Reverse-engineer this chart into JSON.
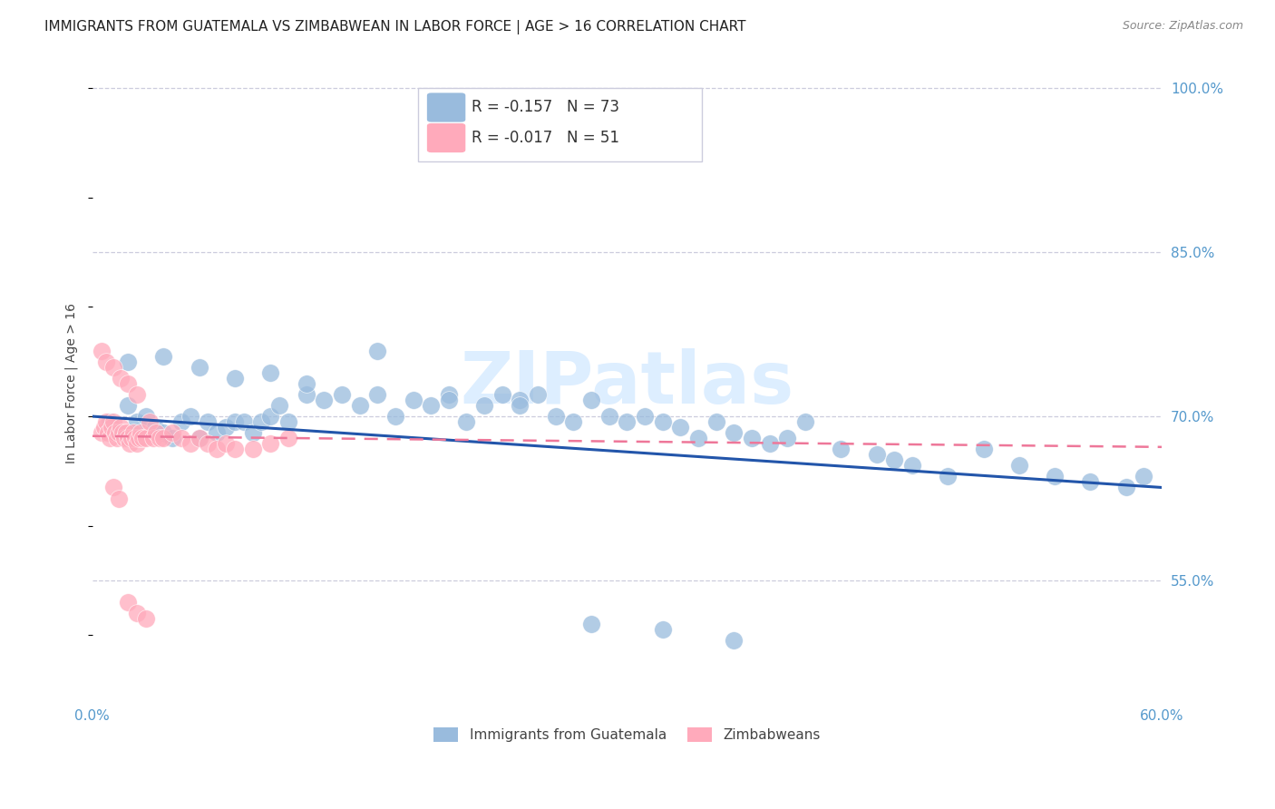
{
  "title": "IMMIGRANTS FROM GUATEMALA VS ZIMBABWEAN IN LABOR FORCE | AGE > 16 CORRELATION CHART",
  "source": "Source: ZipAtlas.com",
  "ylabel": "In Labor Force | Age > 16",
  "xlim": [
    0.0,
    0.6
  ],
  "ylim": [
    0.44,
    1.02
  ],
  "xticks": [
    0.0,
    0.1,
    0.2,
    0.3,
    0.4,
    0.5,
    0.6
  ],
  "xtick_labels": [
    "0.0%",
    "",
    "",
    "",
    "",
    "",
    "60.0%"
  ],
  "ytick_positions": [
    0.55,
    0.7,
    0.85,
    1.0
  ],
  "ytick_labels": [
    "55.0%",
    "70.0%",
    "85.0%",
    "100.0%"
  ],
  "blue_color": "#99BBDD",
  "pink_color": "#FFAABB",
  "blue_line_color": "#2255AA",
  "pink_line_color": "#EE7799",
  "watermark": "ZIPatlas",
  "watermark_color": "#DDEEFF",
  "legend1_r": "-0.157",
  "legend1_n": "73",
  "legend2_r": "-0.017",
  "legend2_n": "51",
  "legend_label1": "Immigrants from Guatemala",
  "legend_label2": "Zimbabweans",
  "blue_x": [
    0.01,
    0.015,
    0.02,
    0.025,
    0.03,
    0.035,
    0.04,
    0.045,
    0.05,
    0.055,
    0.06,
    0.065,
    0.07,
    0.075,
    0.08,
    0.085,
    0.09,
    0.095,
    0.1,
    0.105,
    0.11,
    0.12,
    0.13,
    0.14,
    0.15,
    0.16,
    0.17,
    0.18,
    0.19,
    0.2,
    0.21,
    0.22,
    0.23,
    0.24,
    0.25,
    0.26,
    0.27,
    0.28,
    0.29,
    0.3,
    0.31,
    0.32,
    0.33,
    0.34,
    0.35,
    0.36,
    0.37,
    0.38,
    0.39,
    0.4,
    0.42,
    0.44,
    0.45,
    0.46,
    0.48,
    0.5,
    0.52,
    0.54,
    0.56,
    0.58,
    0.59,
    0.02,
    0.04,
    0.06,
    0.08,
    0.1,
    0.12,
    0.16,
    0.2,
    0.24,
    0.28,
    0.32,
    0.36
  ],
  "blue_y": [
    0.695,
    0.685,
    0.71,
    0.695,
    0.7,
    0.69,
    0.685,
    0.68,
    0.695,
    0.7,
    0.68,
    0.695,
    0.685,
    0.69,
    0.695,
    0.695,
    0.685,
    0.695,
    0.7,
    0.71,
    0.695,
    0.72,
    0.715,
    0.72,
    0.71,
    0.76,
    0.7,
    0.715,
    0.71,
    0.72,
    0.695,
    0.71,
    0.72,
    0.715,
    0.72,
    0.7,
    0.695,
    0.715,
    0.7,
    0.695,
    0.7,
    0.695,
    0.69,
    0.68,
    0.695,
    0.685,
    0.68,
    0.675,
    0.68,
    0.695,
    0.67,
    0.665,
    0.66,
    0.655,
    0.645,
    0.67,
    0.655,
    0.645,
    0.64,
    0.635,
    0.645,
    0.75,
    0.755,
    0.745,
    0.735,
    0.74,
    0.73,
    0.72,
    0.715,
    0.71,
    0.51,
    0.505,
    0.495
  ],
  "pink_x": [
    0.005,
    0.007,
    0.008,
    0.009,
    0.01,
    0.011,
    0.012,
    0.013,
    0.014,
    0.015,
    0.016,
    0.017,
    0.018,
    0.019,
    0.02,
    0.021,
    0.022,
    0.023,
    0.024,
    0.025,
    0.026,
    0.027,
    0.028,
    0.03,
    0.032,
    0.034,
    0.036,
    0.038,
    0.04,
    0.045,
    0.05,
    0.055,
    0.06,
    0.065,
    0.07,
    0.075,
    0.08,
    0.09,
    0.1,
    0.11,
    0.005,
    0.008,
    0.012,
    0.016,
    0.02,
    0.025,
    0.012,
    0.015,
    0.02,
    0.025,
    0.03
  ],
  "pink_y": [
    0.685,
    0.69,
    0.695,
    0.685,
    0.68,
    0.69,
    0.695,
    0.685,
    0.68,
    0.685,
    0.69,
    0.685,
    0.68,
    0.685,
    0.68,
    0.675,
    0.68,
    0.685,
    0.68,
    0.675,
    0.68,
    0.685,
    0.68,
    0.68,
    0.695,
    0.68,
    0.685,
    0.68,
    0.68,
    0.685,
    0.68,
    0.675,
    0.68,
    0.675,
    0.67,
    0.675,
    0.67,
    0.67,
    0.675,
    0.68,
    0.76,
    0.75,
    0.745,
    0.735,
    0.73,
    0.72,
    0.635,
    0.625,
    0.53,
    0.52,
    0.515
  ],
  "blue_trend_x": [
    0.0,
    0.6
  ],
  "blue_trend_y": [
    0.7,
    0.635
  ],
  "pink_trend_x": [
    0.0,
    0.6
  ],
  "pink_trend_y": [
    0.682,
    0.672
  ],
  "background_color": "#FFFFFF",
  "grid_color": "#CCCCDD",
  "tick_color": "#5599CC",
  "title_fontsize": 11,
  "source_fontsize": 9,
  "ylabel_fontsize": 10,
  "tick_fontsize": 11
}
